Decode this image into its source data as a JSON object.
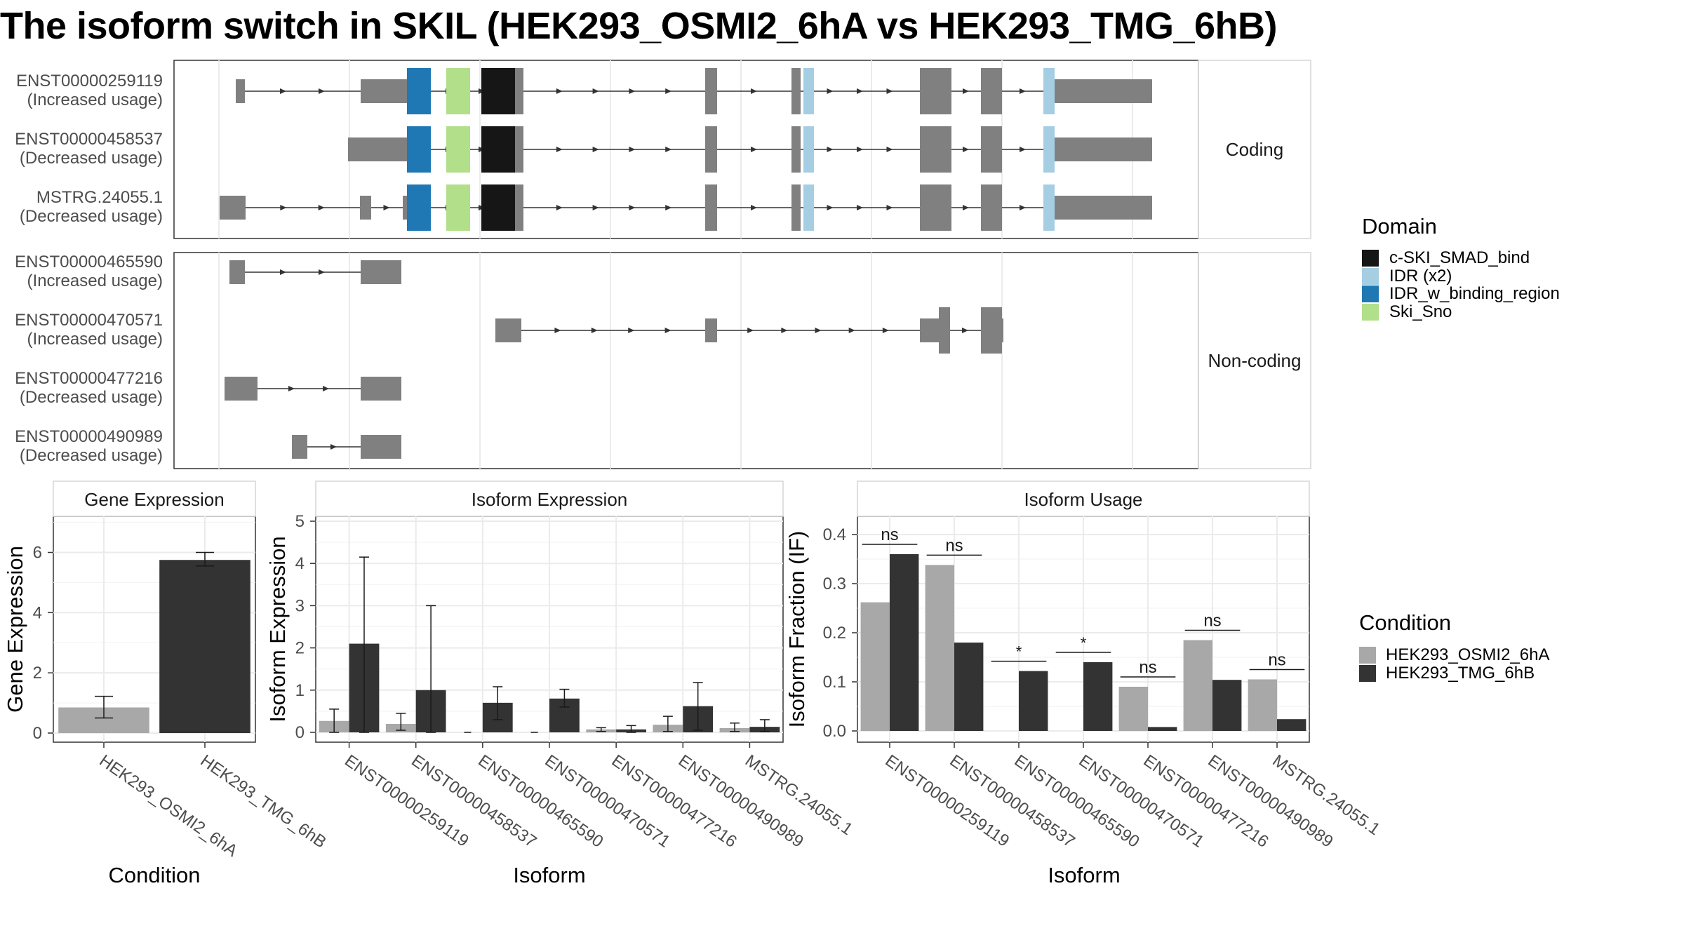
{
  "title": "The isoform switch in SKIL (HEK293_OSMI2_6hA vs HEK293_TMG_6hB)",
  "colors": {
    "exon": "#808080",
    "c-SKI_SMAD_bind": "#161616",
    "IDR (x2)": "#a6cee3",
    "IDR_w_binding_region": "#1f78b4",
    "Ski_Sno": "#b2df8a",
    "condition_A": "#a8a8a8",
    "condition_B": "#333333"
  },
  "structure": {
    "coding_label": "Coding",
    "noncoding_label": "Non-coding",
    "isoforms": [
      {
        "id": "ENST00000259119",
        "usage": "(Increased usage)",
        "group": "coding"
      },
      {
        "id": "ENST00000458537",
        "usage": "(Decreased usage)",
        "group": "coding"
      },
      {
        "id": "MSTRG.24055.1",
        "usage": "(Decreased usage)",
        "group": "coding"
      },
      {
        "id": "ENST00000465590",
        "usage": "(Increased usage)",
        "group": "noncoding"
      },
      {
        "id": "ENST00000470571",
        "usage": "(Increased usage)",
        "group": "noncoding"
      },
      {
        "id": "ENST00000477216",
        "usage": "(Decreased usage)",
        "group": "noncoding"
      },
      {
        "id": "ENST00000490989",
        "usage": "(Decreased usage)",
        "group": "noncoding"
      }
    ]
  },
  "legend_domain": {
    "title": "Domain",
    "items": [
      {
        "label": "c-SKI_SMAD_bind",
        "color": "#161616"
      },
      {
        "label": "IDR (x2)",
        "color": "#a6cee3"
      },
      {
        "label": "IDR_w_binding_region",
        "color": "#1f78b4"
      },
      {
        "label": "Ski_Sno",
        "color": "#b2df8a"
      }
    ]
  },
  "legend_condition": {
    "title": "Condition",
    "items": [
      {
        "label": "HEK293_OSMI2_6hA",
        "color": "#a8a8a8"
      },
      {
        "label": "HEK293_TMG_6hB",
        "color": "#333333"
      }
    ]
  },
  "chart_data": [
    {
      "type": "bar",
      "title": "Gene Expression",
      "xlabel": "Condition",
      "ylabel": "Gene Expression",
      "ylim": [
        0,
        7.2
      ],
      "yticks": [
        0,
        2,
        4,
        6
      ],
      "categories": [
        "HEK293_OSMI2_6hA",
        "HEK293_TMG_6hB"
      ],
      "values": [
        0.85,
        5.75
      ],
      "errors": [
        [
          0.5,
          1.22
        ],
        [
          5.55,
          6.0
        ]
      ],
      "colors": [
        "#a8a8a8",
        "#333333"
      ],
      "grid": true
    },
    {
      "type": "bar",
      "title": "Isoform Expression",
      "xlabel": "Isoform",
      "ylabel": "Isoform Expression",
      "ylim": [
        0,
        5
      ],
      "yticks": [
        0,
        1,
        2,
        3,
        4,
        5
      ],
      "categories": [
        "ENST00000259119",
        "ENST00000458537",
        "ENST00000465590",
        "ENST00000470571",
        "ENST00000477216",
        "ENST00000490989",
        "MSTRG.24055.1"
      ],
      "series": [
        {
          "name": "HEK293_OSMI2_6hA",
          "values": [
            0.27,
            0.2,
            0.0,
            0.0,
            0.07,
            0.18,
            0.1
          ],
          "errors": [
            [
              0.0,
              0.55
            ],
            [
              0.05,
              0.45
            ],
            [
              0.0,
              0.0
            ],
            [
              0.0,
              0.0
            ],
            [
              0.02,
              0.11
            ],
            [
              0.02,
              0.38
            ],
            [
              0.02,
              0.22
            ]
          ]
        },
        {
          "name": "HEK293_TMG_6hB",
          "values": [
            2.1,
            1.0,
            0.7,
            0.8,
            0.07,
            0.62,
            0.13
          ],
          "errors": [
            [
              0.0,
              4.15
            ],
            [
              0.0,
              3.0
            ],
            [
              0.3,
              1.08
            ],
            [
              0.6,
              1.02
            ],
            [
              0.0,
              0.16
            ],
            [
              0.05,
              1.18
            ],
            [
              0.02,
              0.3
            ]
          ]
        }
      ],
      "grid": true
    },
    {
      "type": "bar",
      "title": "Isoform Usage",
      "xlabel": "Isoform",
      "ylabel": "Isoform Fraction (IF)",
      "ylim": [
        0,
        0.43
      ],
      "yticks": [
        "0.0",
        "0.1",
        "0.2",
        "0.3",
        "0.4"
      ],
      "categories": [
        "ENST00000259119",
        "ENST00000458537",
        "ENST00000465590",
        "ENST00000470571",
        "ENST00000477216",
        "ENST00000490989",
        "MSTRG.24055.1"
      ],
      "series": [
        {
          "name": "HEK293_OSMI2_6hA",
          "values": [
            0.262,
            0.338,
            0.0,
            0.0,
            0.09,
            0.185,
            0.105
          ]
        },
        {
          "name": "HEK293_TMG_6hB",
          "values": [
            0.36,
            0.18,
            0.122,
            0.14,
            0.008,
            0.104,
            0.024
          ]
        }
      ],
      "annotations": [
        {
          "category": "ENST00000259119",
          "text": "ns",
          "y": 0.38
        },
        {
          "category": "ENST00000458537",
          "text": "ns",
          "y": 0.358
        },
        {
          "category": "ENST00000465590",
          "text": "*",
          "y": 0.142
        },
        {
          "category": "ENST00000470571",
          "text": "*",
          "y": 0.16
        },
        {
          "category": "ENST00000477216",
          "text": "ns",
          "y": 0.11
        },
        {
          "category": "ENST00000490989",
          "text": "ns",
          "y": 0.205
        },
        {
          "category": "MSTRG.24055.1",
          "text": "ns",
          "y": 0.125
        }
      ],
      "grid": true
    }
  ]
}
